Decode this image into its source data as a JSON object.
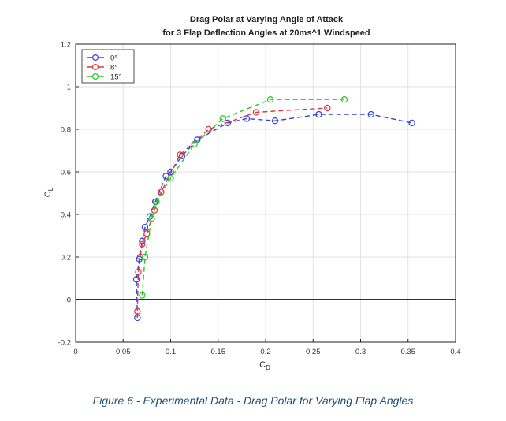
{
  "figure": {
    "caption": "Figure 6 - Experimental Data - Drag Polar for Varying Flap Angles"
  },
  "chart_data": {
    "type": "line",
    "title": "Drag Polar at Varying Angle of Attack",
    "subtitle": "for 3 Flap Deflection Angles at 20ms^1 Windspeed",
    "xlabel": "C",
    "xlabel_sub": "D",
    "ylabel": "C",
    "ylabel_sub": "L",
    "xlim": [
      0,
      0.4
    ],
    "ylim": [
      -0.2,
      1.2
    ],
    "xticks": [
      "0",
      "0.05",
      "0.1",
      "0.15",
      "0.2",
      "0.25",
      "0.3",
      "0.35",
      "0.4"
    ],
    "yticks": [
      "-0.2",
      "0",
      "0.2",
      "0.4",
      "0.6",
      "0.8",
      "1",
      "1.2"
    ],
    "grid": true,
    "legend_position": "top-left",
    "zero_line": true,
    "series": [
      {
        "name": "0°",
        "color": "#3344dd",
        "x": [
          0.065,
          0.064,
          0.067,
          0.07,
          0.073,
          0.078,
          0.084,
          0.095,
          0.1,
          0.112,
          0.128,
          0.16,
          0.18,
          0.21,
          0.256,
          0.311,
          0.354
        ],
        "y": [
          -0.085,
          0.095,
          0.19,
          0.275,
          0.34,
          0.39,
          0.46,
          0.58,
          0.6,
          0.675,
          0.75,
          0.83,
          0.85,
          0.84,
          0.87,
          0.87,
          0.83
        ]
      },
      {
        "name": "8°",
        "color": "#dd3344",
        "x": [
          0.065,
          0.066,
          0.068,
          0.07,
          0.075,
          0.083,
          0.09,
          0.11,
          0.14,
          0.19,
          0.265
        ],
        "y": [
          -0.055,
          0.13,
          0.2,
          0.26,
          0.31,
          0.42,
          0.505,
          0.68,
          0.8,
          0.88,
          0.9
        ]
      },
      {
        "name": "15°",
        "color": "#22cc22",
        "x": [
          0.07,
          0.073,
          0.08,
          0.085,
          0.1,
          0.125,
          0.155,
          0.205,
          0.283
        ],
        "y": [
          0.02,
          0.2,
          0.38,
          0.46,
          0.57,
          0.73,
          0.85,
          0.94,
          0.94
        ]
      }
    ]
  }
}
